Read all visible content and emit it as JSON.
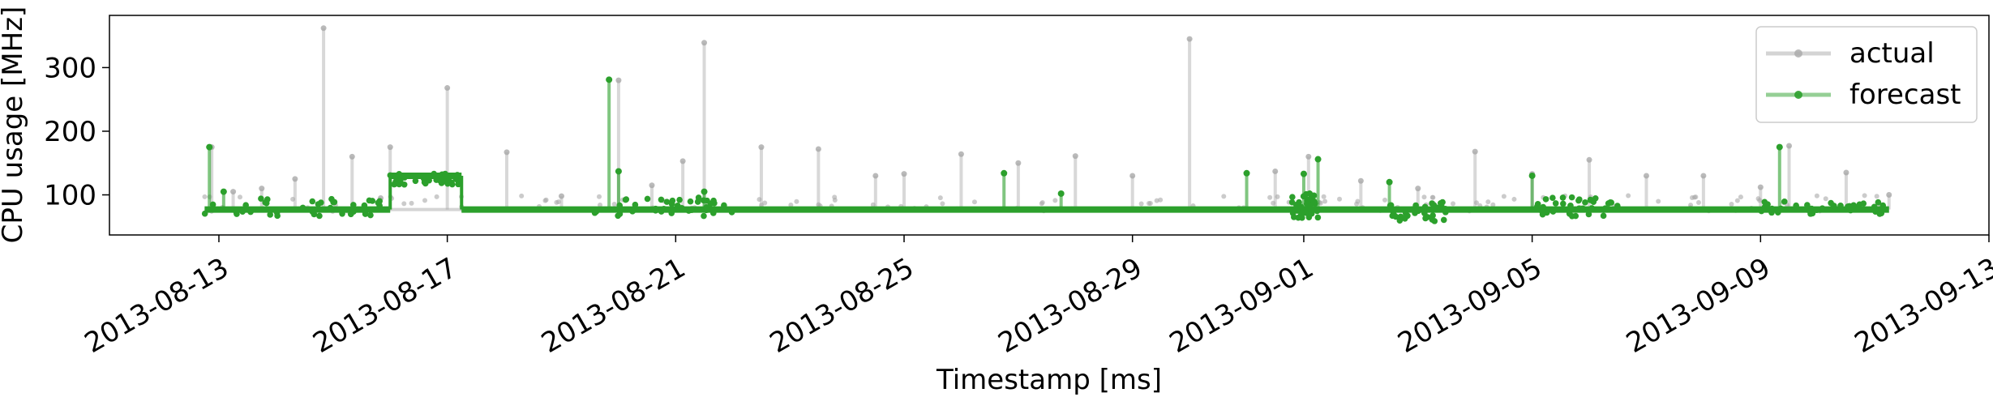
{
  "chart_data": {
    "type": "line",
    "xlabel": "Timestamp [ms]",
    "ylabel": "CPU usage [MHz]",
    "x_range": [
      "2013-08-11T02:00",
      "2013-09-13T00:00"
    ],
    "ylim": [
      37,
      382
    ],
    "x_ticks": [
      "2013-08-13",
      "2013-08-17",
      "2013-08-21",
      "2013-08-25",
      "2013-08-29",
      "2013-09-01",
      "2013-09-05",
      "2013-09-09",
      "2013-09-13"
    ],
    "y_ticks": [
      100,
      200,
      300
    ],
    "grid": false,
    "legend": {
      "placement": "top-right",
      "entries": [
        "actual",
        "forecast"
      ]
    },
    "baseline_mhz": 77,
    "series": [
      {
        "name": "actual",
        "color": "#a9a9a9",
        "spikes": [
          {
            "x": "2013-08-12T21:00",
            "y": 175
          },
          {
            "x": "2013-08-13T06:00",
            "y": 105
          },
          {
            "x": "2013-08-13T18:00",
            "y": 110
          },
          {
            "x": "2013-08-14T08:00",
            "y": 125
          },
          {
            "x": "2013-08-14T20:00",
            "y": 362
          },
          {
            "x": "2013-08-15T08:00",
            "y": 160
          },
          {
            "x": "2013-08-15T20:00",
            "y": 95
          },
          {
            "x": "2013-08-16T00:00",
            "y": 175
          },
          {
            "x": "2013-08-17T00:00",
            "y": 268
          },
          {
            "x": "2013-08-18T01:00",
            "y": 167
          },
          {
            "x": "2013-08-19T00:00",
            "y": 98
          },
          {
            "x": "2013-08-20T00:00",
            "y": 280
          },
          {
            "x": "2013-08-20T14:00",
            "y": 115
          },
          {
            "x": "2013-08-21T03:00",
            "y": 153
          },
          {
            "x": "2013-08-21T12:00",
            "y": 339
          },
          {
            "x": "2013-08-22T12:00",
            "y": 175
          },
          {
            "x": "2013-08-23T12:00",
            "y": 172
          },
          {
            "x": "2013-08-24T12:00",
            "y": 130
          },
          {
            "x": "2013-08-25T00:00",
            "y": 133
          },
          {
            "x": "2013-08-26T00:00",
            "y": 164
          },
          {
            "x": "2013-08-27T00:00",
            "y": 150
          },
          {
            "x": "2013-08-28T00:00",
            "y": 161
          },
          {
            "x": "2013-08-29T00:00",
            "y": 130
          },
          {
            "x": "2013-08-30T00:00",
            "y": 345
          },
          {
            "x": "2013-08-31T12:00",
            "y": 137
          },
          {
            "x": "2013-09-01T02:00",
            "y": 160
          },
          {
            "x": "2013-09-02T00:00",
            "y": 122
          },
          {
            "x": "2013-09-03T00:00",
            "y": 110
          },
          {
            "x": "2013-09-04T00:00",
            "y": 168
          },
          {
            "x": "2013-09-05T00:00",
            "y": 133
          },
          {
            "x": "2013-09-06T00:00",
            "y": 155
          },
          {
            "x": "2013-09-07T00:00",
            "y": 130
          },
          {
            "x": "2013-09-08T00:00",
            "y": 130
          },
          {
            "x": "2013-09-09T00:00",
            "y": 112
          },
          {
            "x": "2013-09-09T12:00",
            "y": 177
          },
          {
            "x": "2013-09-10T12:00",
            "y": 135
          },
          {
            "x": "2013-09-11T06:00",
            "y": 100
          }
        ]
      },
      {
        "name": "forecast",
        "color": "#2ca02c",
        "segments": [
          {
            "from": "2013-08-12T18:00",
            "to": "2013-08-16T00:00",
            "y": 77
          },
          {
            "from": "2013-08-16T00:00",
            "to": "2013-08-17T06:00",
            "y": 130
          },
          {
            "from": "2013-08-17T06:00",
            "to": "2013-09-11T06:00",
            "y": 77
          }
        ],
        "spikes": [
          {
            "x": "2013-08-12T20:00",
            "y": 175
          },
          {
            "x": "2013-08-13T02:00",
            "y": 105
          },
          {
            "x": "2013-08-19T20:00",
            "y": 281
          },
          {
            "x": "2013-08-20T00:00",
            "y": 137
          },
          {
            "x": "2013-08-21T12:00",
            "y": 105
          },
          {
            "x": "2013-08-26T18:00",
            "y": 134
          },
          {
            "x": "2013-08-27T18:00",
            "y": 102
          },
          {
            "x": "2013-08-31T00:00",
            "y": 134
          },
          {
            "x": "2013-09-01T00:00",
            "y": 133
          },
          {
            "x": "2013-09-01T06:00",
            "y": 156
          },
          {
            "x": "2013-09-02T12:00",
            "y": 120
          },
          {
            "x": "2013-09-05T00:00",
            "y": 130
          },
          {
            "x": "2013-09-09T08:00",
            "y": 175
          }
        ]
      }
    ]
  }
}
